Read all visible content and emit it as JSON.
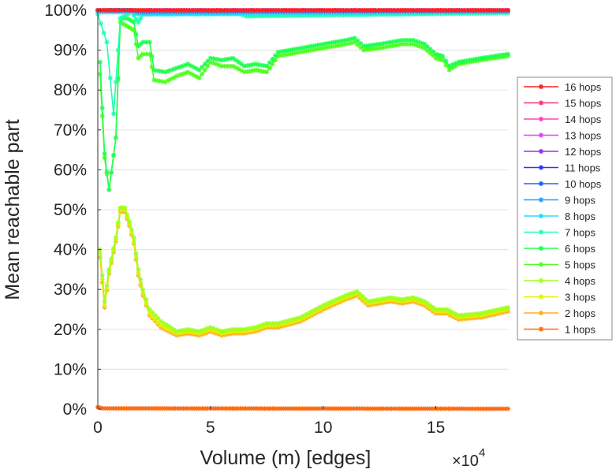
{
  "chart_data": {
    "type": "line",
    "title": "",
    "xlabel": "Volume (m) [edges]",
    "ylabel": "Mean reachable part",
    "x_multiplier": "×10",
    "x_multiplier_exp": "4",
    "xlim": [
      0,
      18.2
    ],
    "ylim": [
      0,
      100
    ],
    "xticks": [
      0,
      5,
      10,
      15
    ],
    "xtick_labels": [
      "0",
      "5",
      "10",
      "15"
    ],
    "yticks": [
      0,
      10,
      20,
      30,
      40,
      50,
      60,
      70,
      80,
      90,
      100
    ],
    "ytick_labels": [
      "0%",
      "10%",
      "20%",
      "30%",
      "40%",
      "50%",
      "60%",
      "70%",
      "80%",
      "90%",
      "100%"
    ],
    "grid": "horizontal",
    "legend_position": "right",
    "series": [
      {
        "name": "16 hops",
        "color": "#ff2020",
        "x": [
          0,
          18.2
        ],
        "y": [
          100,
          100
        ]
      },
      {
        "name": "15 hops",
        "color": "#ff3070",
        "x": [
          0,
          18.2
        ],
        "y": [
          100,
          100
        ]
      },
      {
        "name": "14 hops",
        "color": "#ff40c0",
        "x": [
          0,
          18.2
        ],
        "y": [
          100,
          100
        ]
      },
      {
        "name": "13 hops",
        "color": "#e040ff",
        "x": [
          0,
          18.2
        ],
        "y": [
          100,
          100
        ]
      },
      {
        "name": "12 hops",
        "color": "#9030ff",
        "x": [
          0,
          18.2
        ],
        "y": [
          100,
          100
        ]
      },
      {
        "name": "11 hops",
        "color": "#3030ff",
        "x": [
          0,
          18.2
        ],
        "y": [
          100,
          100
        ]
      },
      {
        "name": "10 hops",
        "color": "#2060ff",
        "x": [
          0,
          18.2
        ],
        "y": [
          100,
          100
        ]
      },
      {
        "name": "9 hops",
        "color": "#20a0ff",
        "x": [
          0,
          1.5,
          1.8,
          18.2
        ],
        "y": [
          100,
          100,
          99.5,
          99.8
        ]
      },
      {
        "name": "8 hops",
        "color": "#20e0ff",
        "x": [
          0,
          1.5,
          1.8,
          18.2
        ],
        "y": [
          99.5,
          99.5,
          99,
          99.6
        ]
      },
      {
        "name": "7 hops",
        "color": "#20ffb0",
        "x": [
          0,
          0.4,
          0.7,
          1.0,
          1.5,
          1.8,
          2.0,
          6.3,
          6.6,
          18.2
        ],
        "y": [
          99,
          92,
          74,
          98,
          99.5,
          97,
          99,
          99,
          98.5,
          99.3
        ]
      },
      {
        "name": "6 hops",
        "color": "#20ff50",
        "x": [
          0.1,
          0.3,
          0.5,
          0.8,
          1.0,
          1.3,
          1.6,
          1.8,
          2.0,
          2.3,
          2.5,
          3.0,
          3.5,
          4.0,
          4.5,
          5.0,
          5.5,
          6.0,
          6.5,
          7.0,
          7.5,
          8.0,
          8.5,
          9.0,
          9.5,
          10.0,
          10.5,
          11.0,
          11.4,
          11.8,
          12.5,
          13.0,
          13.5,
          14.0,
          14.5,
          15.0,
          15.3,
          15.6,
          16.0,
          17.0,
          18.2
        ],
        "y": [
          87,
          64,
          55,
          68,
          98,
          98,
          97,
          91,
          92,
          92,
          85,
          84.5,
          85.5,
          86.5,
          85,
          88,
          87.5,
          88,
          86,
          86.5,
          86,
          89.5,
          90,
          90.5,
          91,
          91.5,
          92,
          92.5,
          93,
          91,
          91.5,
          92,
          92.5,
          92.5,
          91.5,
          89,
          88.5,
          86,
          87,
          88,
          89
        ]
      },
      {
        "name": "5 hops",
        "color": "#50ff20",
        "x": [
          0.1,
          0.3,
          0.5,
          0.8,
          1.0,
          1.3,
          1.6,
          1.8,
          2.0,
          2.3,
          2.5,
          3.0,
          3.5,
          4.0,
          4.5,
          5.0,
          5.5,
          6.0,
          6.5,
          7.0,
          7.5,
          8.0,
          8.5,
          9.0,
          9.5,
          10.0,
          10.5,
          11.0,
          11.4,
          11.8,
          12.5,
          13.0,
          13.5,
          14.0,
          14.5,
          15.0,
          15.3,
          15.6,
          16.0,
          17.0,
          18.2
        ],
        "y": [
          84,
          63,
          55,
          68,
          97,
          96,
          95,
          88,
          89,
          89,
          82.5,
          82,
          83.5,
          84.5,
          83,
          87,
          86,
          86,
          84.5,
          85,
          84.5,
          88.5,
          89,
          89.5,
          90,
          90.5,
          91,
          91.5,
          92,
          90,
          90.5,
          91,
          91.5,
          91.5,
          90.5,
          88,
          87.5,
          85,
          86.5,
          87.5,
          88.5
        ]
      },
      {
        "name": "4 hops",
        "color": "#a0ff20",
        "x": [
          0.1,
          0.3,
          0.5,
          0.8,
          1.0,
          1.2,
          1.4,
          1.6,
          1.8,
          2.0,
          2.3,
          2.8,
          3.5,
          4.0,
          4.5,
          5.0,
          5.5,
          6.0,
          6.5,
          7.0,
          7.5,
          8.0,
          9.0,
          10.0,
          11.0,
          11.5,
          12.0,
          12.5,
          13.0,
          13.5,
          14.0,
          14.5,
          15.0,
          15.5,
          16.0,
          17.0,
          18.2
        ],
        "y": [
          40,
          27,
          35,
          43,
          50.5,
          50.5,
          47,
          43,
          35,
          30,
          25,
          22,
          19.5,
          20,
          19.5,
          20.5,
          19.5,
          20,
          20,
          20.5,
          21.5,
          21.5,
          23,
          26,
          28.5,
          29.5,
          27,
          27.5,
          28,
          27.5,
          28,
          27,
          25,
          25,
          23.5,
          24,
          25.5
        ]
      },
      {
        "name": "3 hops",
        "color": "#e8f000",
        "x": [
          0.1,
          0.3,
          0.5,
          0.8,
          1.0,
          1.2,
          1.4,
          1.6,
          1.8,
          2.0,
          2.3,
          2.8,
          3.5,
          4.0,
          4.5,
          5.0,
          5.5,
          6.0,
          6.5,
          7.0,
          7.5,
          8.0,
          9.0,
          10.0,
          11.0,
          11.5,
          12.0,
          12.5,
          13.0,
          13.5,
          14.0,
          14.5,
          15.0,
          15.5,
          16.0,
          17.0,
          18.2
        ],
        "y": [
          39,
          26,
          34.5,
          42.5,
          50,
          50,
          46.5,
          42,
          34,
          29,
          24,
          21,
          19,
          19.5,
          19,
          20,
          19,
          19.5,
          19.5,
          20,
          21,
          21,
          22.5,
          25.5,
          28,
          29,
          26.5,
          27,
          27.5,
          27,
          27.5,
          26.5,
          24.5,
          24.5,
          23,
          23.5,
          25
        ]
      },
      {
        "name": "2 hops",
        "color": "#ffb020",
        "x": [
          0.1,
          0.3,
          0.5,
          0.8,
          1.0,
          1.2,
          1.4,
          1.6,
          1.8,
          2.0,
          2.3,
          2.8,
          3.5,
          4.0,
          4.5,
          5.0,
          5.5,
          6.0,
          6.5,
          7.0,
          7.5,
          8.0,
          9.0,
          10.0,
          11.0,
          11.5,
          12.0,
          12.5,
          13.0,
          13.5,
          14.0,
          14.5,
          15.0,
          15.5,
          16.0,
          17.0,
          18.2
        ],
        "y": [
          38,
          25.5,
          34,
          42,
          49.5,
          49.5,
          46,
          41.5,
          33.5,
          28.5,
          23.5,
          20.5,
          18.5,
          19,
          18.5,
          19.5,
          18.5,
          19,
          19,
          19.5,
          20.5,
          20.5,
          22,
          25,
          27.5,
          28.5,
          26,
          26.5,
          27,
          26.5,
          27,
          26,
          24,
          24,
          22.5,
          23,
          24.5
        ]
      },
      {
        "name": "1 hops",
        "color": "#ff6a10",
        "x": [
          0,
          0.2,
          18.2
        ],
        "y": [
          0.5,
          0.2,
          0.1
        ]
      }
    ]
  }
}
